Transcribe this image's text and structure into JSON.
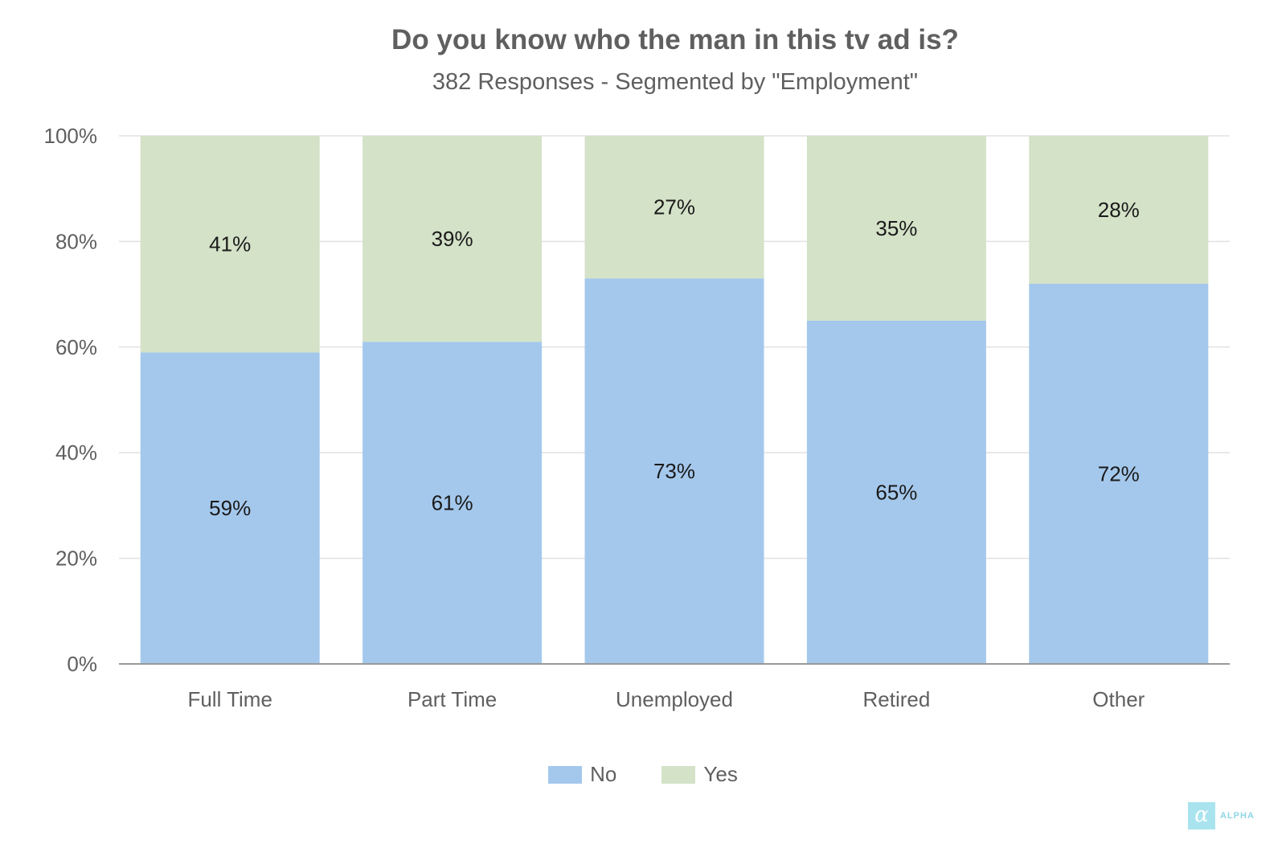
{
  "chart_data": {
    "type": "bar",
    "stacked": true,
    "title": "Do you know who the man in this tv ad is?",
    "subtitle": "382 Responses - Segmented by \"Employment\"",
    "categories": [
      "Full Time",
      "Part Time",
      "Unemployed",
      "Retired",
      "Other"
    ],
    "series": [
      {
        "name": "No",
        "color": "#a4c8ec",
        "values": [
          59,
          61,
          73,
          65,
          72
        ],
        "labels": [
          "59%",
          "61%",
          "73%",
          "65%",
          "72%"
        ]
      },
      {
        "name": "Yes",
        "color": "#d4e2c8",
        "values": [
          41,
          39,
          27,
          35,
          28
        ],
        "labels": [
          "41%",
          "39%",
          "27%",
          "35%",
          "28%"
        ]
      }
    ],
    "ylim": [
      0,
      100
    ],
    "yticks": [
      "0%",
      "20%",
      "40%",
      "60%",
      "80%",
      "100%"
    ],
    "grid": true,
    "legend_position": "bottom-center"
  },
  "logo": {
    "mark": "α",
    "text": "ALPHA"
  }
}
